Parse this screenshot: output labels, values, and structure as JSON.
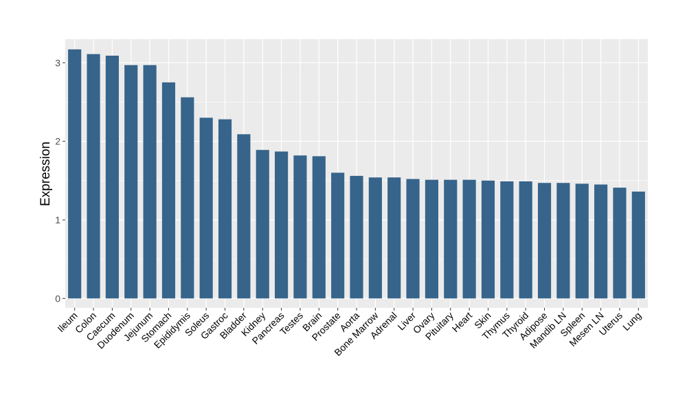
{
  "chart_data": {
    "type": "bar",
    "title": "",
    "xlabel": "",
    "ylabel": "Expression",
    "ylim": [
      -0.12,
      3.3
    ],
    "yticks": [
      0,
      1,
      2,
      3
    ],
    "grid": true,
    "bar_color": "#36648B",
    "panel_color": "#EBEBEB",
    "grid_color": "#FFFFFF",
    "categories": [
      "Ileum",
      "Colon",
      "Caecum",
      "Duodenum",
      "Jejunum",
      "Stomach",
      "Epididymis",
      "Soleus",
      "Gastroc",
      "Bladder",
      "Kidney",
      "Pancreas",
      "Testes",
      "Brain",
      "Prostate",
      "Aorta",
      "Bone Marrow",
      "Adrenal",
      "Liver",
      "Ovary",
      "Pituitary",
      "Heart",
      "Skin",
      "Thymus",
      "Thyroid",
      "Adipose",
      "Mandib LN",
      "Spleen",
      "Mesen LN",
      "Uterus",
      "Lung"
    ],
    "values": [
      3.17,
      3.11,
      3.09,
      2.97,
      2.97,
      2.75,
      2.56,
      2.3,
      2.28,
      2.09,
      1.89,
      1.87,
      1.82,
      1.81,
      1.6,
      1.56,
      1.54,
      1.54,
      1.52,
      1.51,
      1.51,
      1.51,
      1.5,
      1.49,
      1.49,
      1.47,
      1.47,
      1.46,
      1.45,
      1.41,
      1.36
    ]
  }
}
